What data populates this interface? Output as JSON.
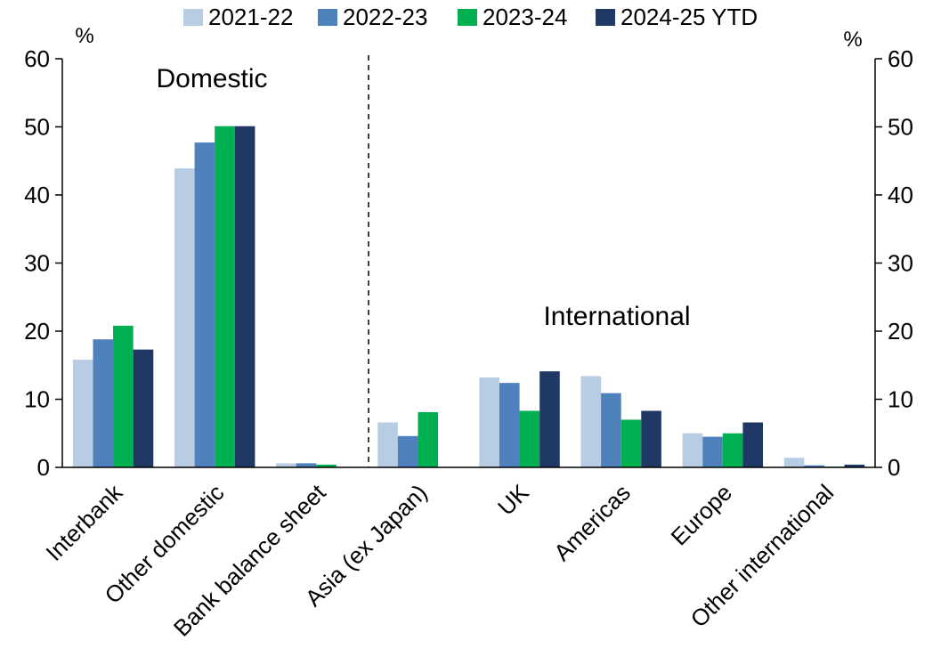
{
  "chart_data": {
    "type": "bar",
    "title": "",
    "xlabel": "",
    "ylabel": "%",
    "ylabel_right": "%",
    "ylim": [
      0,
      60
    ],
    "yticks": [
      0,
      10,
      20,
      30,
      40,
      50,
      60
    ],
    "grid": false,
    "legend_position": "top",
    "categories": [
      "Interbank",
      "Other domestic",
      "Bank balance sheet",
      "Asia (ex Japan)",
      "UK",
      "Americas",
      "Europe",
      "Other international"
    ],
    "series": [
      {
        "name": "2021-22",
        "color": "#b8cce4",
        "values": [
          15.8,
          43.9,
          0.6,
          6.6,
          13.2,
          13.4,
          5.0,
          1.4
        ]
      },
      {
        "name": "2022-23",
        "color": "#4f81bd",
        "values": [
          18.8,
          47.7,
          0.6,
          4.6,
          12.4,
          10.9,
          4.5,
          0.3
        ]
      },
      {
        "name": "2023-24",
        "color": "#00b050",
        "values": [
          20.8,
          50.1,
          0.4,
          8.1,
          8.3,
          7.0,
          5.0,
          0.1
        ]
      },
      {
        "name": "2024-25 YTD",
        "color": "#1f3864",
        "values": [
          17.3,
          50.1,
          0.0,
          0.0,
          14.1,
          8.3,
          6.6,
          0.4
        ]
      }
    ],
    "annotations": [
      "Domestic",
      "International"
    ],
    "divider_after_category": "Bank balance sheet"
  }
}
